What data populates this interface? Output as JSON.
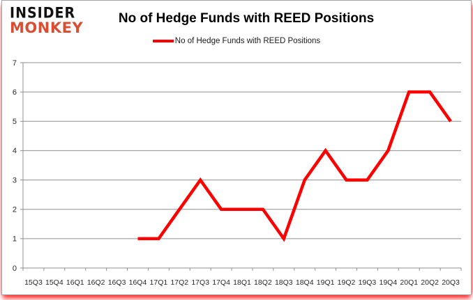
{
  "brand": {
    "line1": "INSIDER",
    "line2": "MONKEY",
    "line1_color": "#111111",
    "line2_color": "#d94f33"
  },
  "header": {
    "title": "No of Hedge Funds with REED Positions"
  },
  "legend": {
    "label": "No of Hedge Funds with REED Positions",
    "line_color": "#ff0000"
  },
  "chart_data": {
    "type": "line",
    "title": "No of Hedge Funds with REED Positions",
    "categories": [
      "15Q3",
      "15Q4",
      "16Q1",
      "16Q2",
      "16Q3",
      "16Q4",
      "17Q1",
      "17Q2",
      "17Q3",
      "17Q4",
      "18Q1",
      "18Q2",
      "18Q3",
      "18Q4",
      "19Q1",
      "19Q2",
      "19Q3",
      "19Q4",
      "20Q1",
      "20Q2",
      "20Q3"
    ],
    "series": [
      {
        "name": "No of Hedge Funds with REED Positions",
        "color": "#ff0000",
        "values": [
          null,
          null,
          null,
          null,
          null,
          1,
          1,
          2,
          3,
          2,
          2,
          2,
          1,
          3,
          4,
          3,
          3,
          4,
          6,
          6,
          5
        ]
      }
    ],
    "xlabel": "",
    "ylabel": "",
    "ylim": [
      0,
      7
    ],
    "ytick_step": 1,
    "grid": true,
    "legend_position": "top",
    "grid_color": "#8f8f8f",
    "axis_color": "#8f8f8f",
    "label_color": "#262626"
  }
}
